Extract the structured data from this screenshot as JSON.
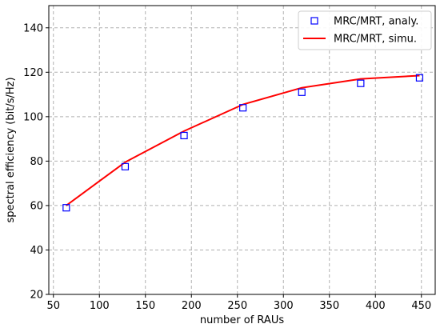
{
  "chart_data": {
    "type": "line",
    "xlabel": "number of RAUs",
    "ylabel": "spectral efficiency (bit/s/Hz)",
    "xlim": [
      45,
      465
    ],
    "ylim": [
      20,
      150
    ],
    "xticks": [
      50,
      100,
      150,
      200,
      250,
      300,
      350,
      400,
      450
    ],
    "yticks": [
      20,
      40,
      60,
      80,
      100,
      120,
      140
    ],
    "grid": true,
    "legend_position": "top-right",
    "series": [
      {
        "name": "MRC/MRT, analy.",
        "style": "markers",
        "marker": "square",
        "color": "#0000ff",
        "x": [
          64,
          128,
          192,
          256,
          320,
          384,
          448
        ],
        "y": [
          59,
          77.5,
          91.5,
          104,
          111,
          115,
          117.5
        ]
      },
      {
        "name": "MRC/MRT, simu.",
        "style": "line",
        "color": "#ff0000",
        "x": [
          64,
          128,
          192,
          256,
          320,
          384,
          448
        ],
        "y": [
          60,
          79.5,
          93.5,
          105.5,
          113,
          117,
          118.5
        ]
      }
    ]
  }
}
